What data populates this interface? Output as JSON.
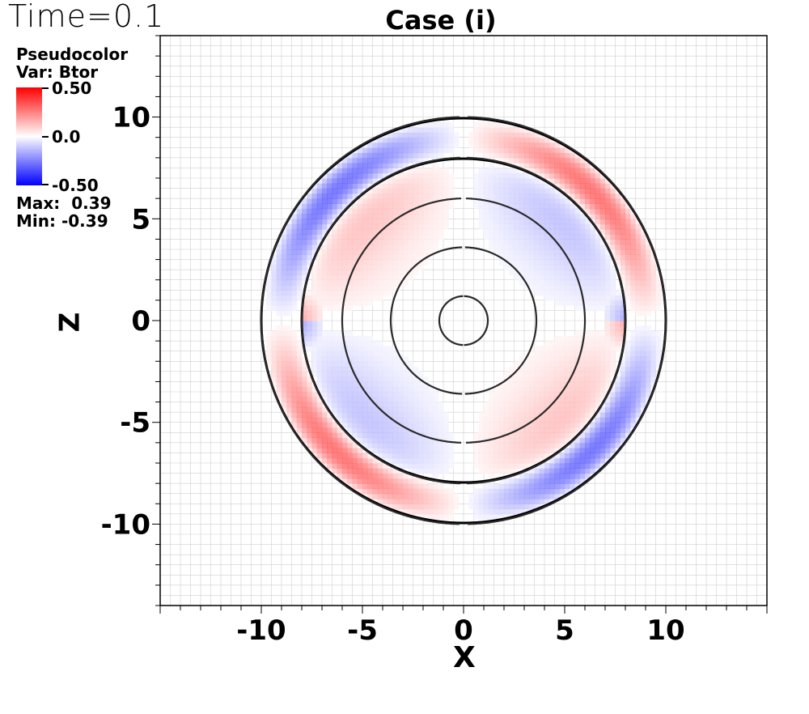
{
  "header": {
    "time_label": "Time=0.1",
    "title": "Case (i)"
  },
  "legend": {
    "line1": "Pseudocolor",
    "line2": "Var: Btor",
    "max_tick": "0.50",
    "mid_tick": "0.0",
    "min_tick": "-0.50",
    "max_text": "Max:  0.39",
    "min_text": "Min: -0.39",
    "colormap": {
      "high": "#ff0000",
      "mid": "#ffffff",
      "low": "#0000ff"
    }
  },
  "chart_data": {
    "type": "heatmap",
    "title": "Case (i)",
    "variable": "Btor",
    "time": 0.1,
    "value_range": [
      -0.5,
      0.5
    ],
    "data_max": 0.39,
    "data_min": -0.39,
    "xlabel": "X",
    "ylabel": "Z",
    "xlim": [
      -15,
      15
    ],
    "ylim": [
      -14,
      14
    ],
    "xticks": [
      -10,
      -5,
      0,
      5,
      10
    ],
    "yticks": [
      10,
      5,
      0,
      -5,
      -10
    ],
    "xtick_labels": [
      "-10",
      "-5",
      "0",
      "5",
      "10"
    ],
    "ytick_labels": [
      "10",
      "5",
      "0",
      "-5",
      "-10"
    ],
    "inner_radius": 8,
    "outer_radius": 10,
    "field_lines_x": [
      1.2,
      3.6,
      6.0,
      8.0,
      10.0
    ]
  }
}
